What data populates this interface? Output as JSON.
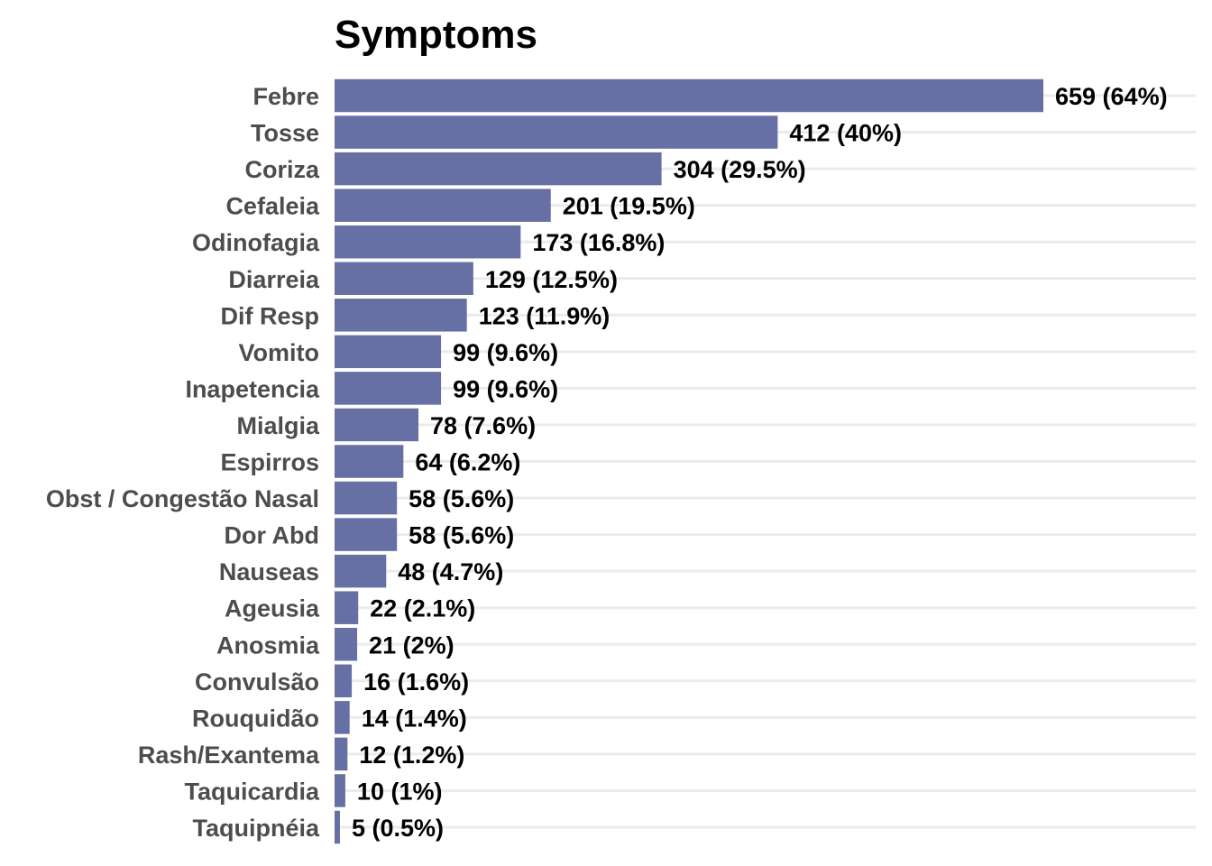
{
  "chart_data": {
    "type": "bar",
    "orientation": "horizontal",
    "title": "Symptoms",
    "xlabel": "",
    "ylabel": "",
    "bar_color": "#6670a4",
    "gridline_color": "#ebebeb",
    "category_label_color": "#4d4d4d",
    "value_label_color": "#000000",
    "xlim": [
      0,
      659
    ],
    "categories": [
      "Febre",
      "Tosse",
      "Coriza",
      "Cefaleia",
      "Odinofagia",
      "Diarreia",
      "Dif Resp",
      "Vomito",
      "Inapetencia",
      "Mialgia",
      "Espirros",
      "Obst / Congestão Nasal",
      "Dor Abd",
      "Nauseas",
      "Ageusia",
      "Anosmia",
      "Convulsão",
      "Rouquidão",
      "Rash/Exantema",
      "Taquicardia",
      "Taquipnéia"
    ],
    "values": [
      659,
      412,
      304,
      201,
      173,
      129,
      123,
      99,
      99,
      78,
      64,
      58,
      58,
      48,
      22,
      21,
      16,
      14,
      12,
      10,
      5
    ],
    "data_labels": [
      "659 (64%)",
      "412 (40%)",
      "304 (29.5%)",
      "201 (19.5%)",
      "173 (16.8%)",
      "129 (12.5%)",
      "123 (11.9%)",
      "99 (9.6%)",
      "99 (9.6%)",
      "78 (7.6%)",
      "64 (6.2%)",
      "58 (5.6%)",
      "58 (5.6%)",
      "48 (4.7%)",
      "22 (2.1%)",
      "21 (2%)",
      "16 (1.6%)",
      "14 (1.4%)",
      "12 (1.2%)",
      "10 (1%)",
      "5 (0.5%)"
    ]
  }
}
